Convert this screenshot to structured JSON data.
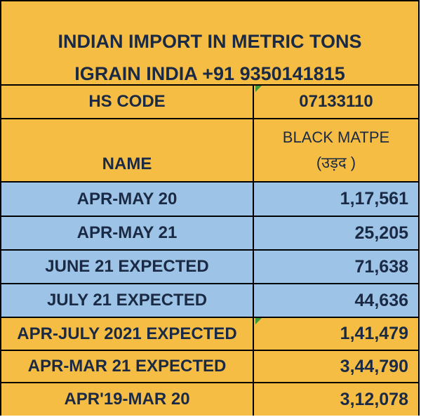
{
  "title": {
    "line1": "INDIAN IMPORT IN METRIC TONS",
    "line2": "IGRAIN INDIA +91 9350141815"
  },
  "hs_code": {
    "label": "HS CODE",
    "value": "07133110"
  },
  "name_row": {
    "label": "NAME",
    "commodity": "BLACK MATPE",
    "commodity_hindi": "(उड़द )"
  },
  "rows": [
    {
      "label": "APR-MAY 20",
      "value": "1,17,561"
    },
    {
      "label": "APR-MAY 21",
      "value": "25,205"
    },
    {
      "label": "JUNE 21 EXPECTED",
      "value": "71,638"
    },
    {
      "label": "JULY 21 EXPECTED",
      "value": "44,636"
    },
    {
      "label": "APR-JULY 2021 EXPECTED",
      "value": "1,41,479"
    },
    {
      "label": "APR-MAR 21 EXPECTED",
      "value": "3,44,790"
    },
    {
      "label": "APR'19-MAR 20",
      "value": "3,12,078"
    }
  ],
  "colors": {
    "gold": "#f6bd45",
    "blue": "#9dc3e6",
    "text": "#1b2a44"
  }
}
